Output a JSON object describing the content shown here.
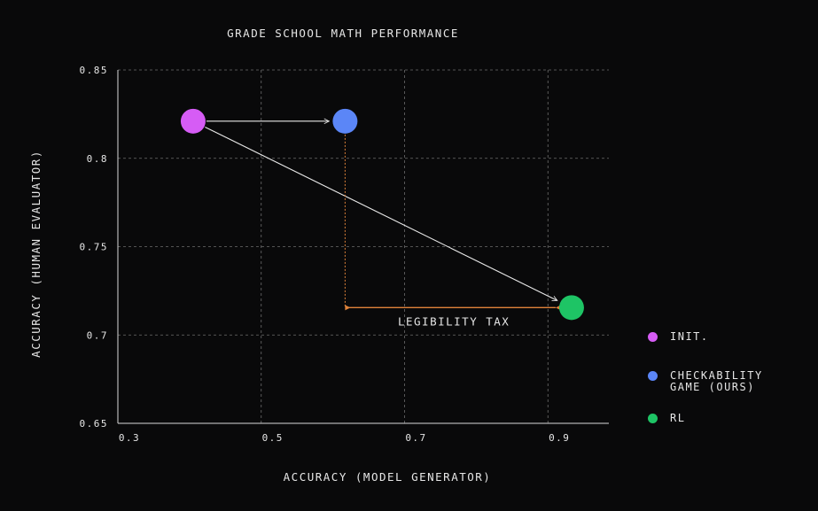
{
  "chart_data": {
    "type": "scatter",
    "title": "GRADE SCHOOL MATH PERFORMANCE",
    "xlabel": "ACCURACY (MODEL GENERATOR)",
    "ylabel": "ACCURACY (HUMAN EVALUATOR)",
    "xlim": [
      0.3,
      0.985
    ],
    "ylim": [
      0.65,
      0.85
    ],
    "xticks": [
      0.3,
      0.5,
      0.7,
      0.9
    ],
    "xtick_labels": [
      "0.3",
      "0.5",
      "0.7",
      "0.9"
    ],
    "yticks": [
      0.65,
      0.7,
      0.75,
      0.8,
      0.85
    ],
    "ytick_labels": [
      "0.65",
      "0.7",
      "0.75",
      "0.8",
      "0.85"
    ],
    "grid": true,
    "legend_position": "right",
    "series": [
      {
        "name": "INIT.",
        "x": 0.405,
        "y": 0.821,
        "color": "#d65cf5"
      },
      {
        "name": "CHECKABILITY GAME (OURS)",
        "x": 0.617,
        "y": 0.821,
        "color": "#5b86f7"
      },
      {
        "name": "RL",
        "x": 0.933,
        "y": 0.7155,
        "color": "#1ec465"
      }
    ],
    "annotations": [
      {
        "type": "arrow",
        "from": [
          0.405,
          0.821
        ],
        "to": [
          0.617,
          0.821
        ],
        "color": "#e8e8e8"
      },
      {
        "type": "arrow",
        "from": [
          0.405,
          0.821
        ],
        "to": [
          0.933,
          0.7155
        ],
        "color": "#e8e8e8"
      },
      {
        "type": "bracket",
        "from": [
          0.617,
          0.821
        ],
        "corner": [
          0.617,
          0.7155
        ],
        "to": [
          0.933,
          0.7155
        ],
        "color": "#e0833a",
        "label": "LEGIBILITY TAX"
      }
    ]
  },
  "legend": {
    "items": [
      {
        "lines": [
          "INIT."
        ],
        "color": "#d65cf5"
      },
      {
        "lines": [
          "CHECKABILITY",
          "GAME (OURS)"
        ],
        "color": "#5b86f7"
      },
      {
        "lines": [
          "RL"
        ],
        "color": "#1ec465"
      }
    ]
  }
}
